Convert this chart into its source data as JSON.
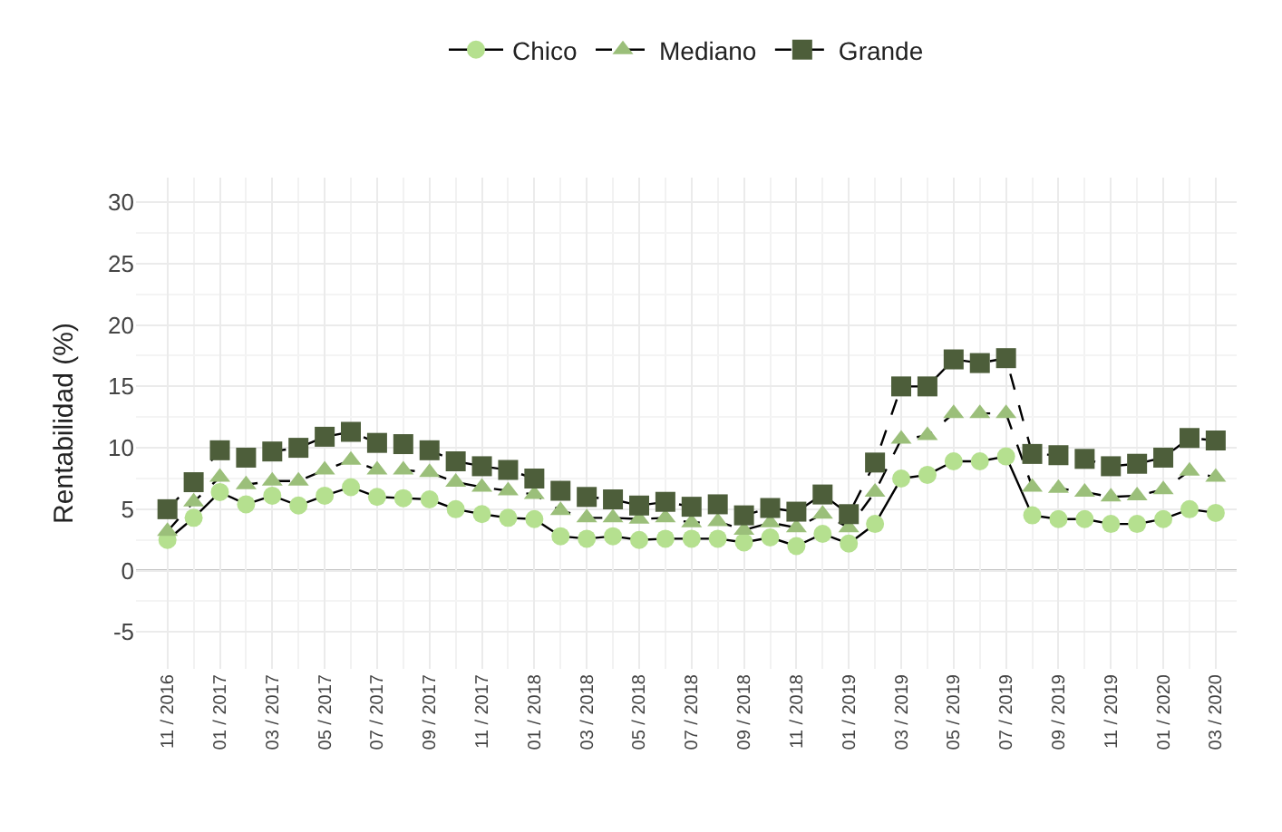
{
  "chart_data": {
    "type": "line",
    "ylabel": "Rentabilidad (%)",
    "categories": [
      "11 / 2016",
      null,
      "01 / 2017",
      null,
      "03 / 2017",
      null,
      "05 / 2017",
      null,
      "07 / 2017",
      null,
      "09 / 2017",
      null,
      "11 / 2017",
      null,
      "01 / 2018",
      null,
      "03 / 2018",
      null,
      "05 / 2018",
      null,
      "07 / 2018",
      null,
      "09 / 2018",
      null,
      "11 / 2018",
      null,
      "01 / 2019",
      null,
      "03 / 2019",
      null,
      "05 / 2019",
      null,
      "07 / 2019",
      null,
      "09 / 2019",
      null,
      "11 / 2019",
      null,
      "01 / 2020",
      null,
      "03 / 2020"
    ],
    "series": [
      {
        "name": "Chico",
        "color": "#b5e08f",
        "marker": "circle",
        "line_style": "solid",
        "values": [
          2.5,
          4.3,
          6.4,
          5.4,
          6.1,
          5.3,
          6.1,
          6.8,
          6.0,
          5.9,
          5.8,
          5.0,
          4.6,
          4.3,
          4.2,
          2.8,
          2.6,
          2.8,
          2.5,
          2.6,
          2.6,
          2.6,
          2.3,
          2.7,
          2.0,
          3.0,
          2.2,
          3.8,
          7.5,
          7.8,
          8.9,
          8.9,
          9.3,
          4.5,
          4.2,
          4.2,
          3.8,
          3.8,
          4.2,
          5.0,
          4.7
        ]
      },
      {
        "name": "Mediano",
        "color": "#9bbf7a",
        "marker": "triangle",
        "line_style": "dashed",
        "values": [
          3.2,
          5.6,
          7.6,
          7.0,
          7.3,
          7.3,
          8.2,
          9.0,
          8.2,
          8.2,
          8.0,
          7.2,
          6.8,
          6.5,
          6.2,
          4.9,
          4.3,
          4.3,
          4.2,
          4.3,
          3.9,
          4.0,
          3.3,
          3.9,
          3.5,
          4.6,
          3.5,
          6.4,
          10.7,
          11.0,
          12.8,
          12.8,
          12.8,
          6.8,
          6.7,
          6.4,
          6.0,
          6.1,
          6.6,
          8.1,
          7.6
        ]
      },
      {
        "name": "Grande",
        "color": "#4d5e3a",
        "marker": "square",
        "line_style": "dashed",
        "values": [
          5.0,
          7.2,
          9.8,
          9.2,
          9.7,
          10.0,
          10.9,
          11.3,
          10.4,
          10.3,
          9.8,
          8.9,
          8.5,
          8.2,
          7.5,
          6.5,
          6.0,
          5.8,
          5.3,
          5.6,
          5.2,
          5.4,
          4.5,
          5.1,
          4.8,
          6.2,
          4.6,
          8.8,
          15.0,
          15.0,
          17.2,
          16.9,
          17.3,
          9.5,
          9.4,
          9.1,
          8.5,
          8.7,
          9.2,
          10.8,
          10.6
        ]
      }
    ],
    "ylim": [
      -8,
      32
    ],
    "yticks": [
      -5,
      0,
      5,
      10,
      15,
      20,
      25,
      30
    ],
    "ref_lines": [
      {
        "axis": "y",
        "value": 0,
        "color": "#8c8c8c"
      }
    ],
    "grid": true,
    "legend": "top"
  }
}
